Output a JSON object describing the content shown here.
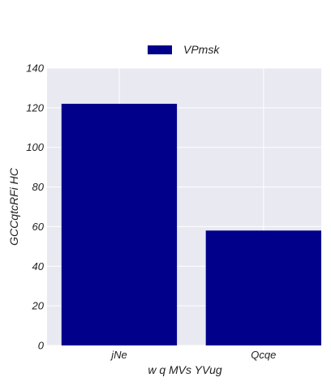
{
  "chart_data": {
    "type": "bar",
    "categories": [
      "jNe",
      "Qcqe"
    ],
    "series": [
      {
        "name": "VPmsk",
        "values": [
          122,
          58
        ],
        "color": "#00008b"
      }
    ],
    "xlabel": "w q  MVs YVug",
    "ylabel": "GCCqtcRFi HC",
    "ylim": [
      0,
      140
    ],
    "yticks": [
      0,
      20,
      40,
      60,
      80,
      100,
      120,
      140
    ],
    "grid": true,
    "legend_position": "top-center",
    "background_color": "#e9e9f1",
    "grid_color": "#ffffff"
  }
}
